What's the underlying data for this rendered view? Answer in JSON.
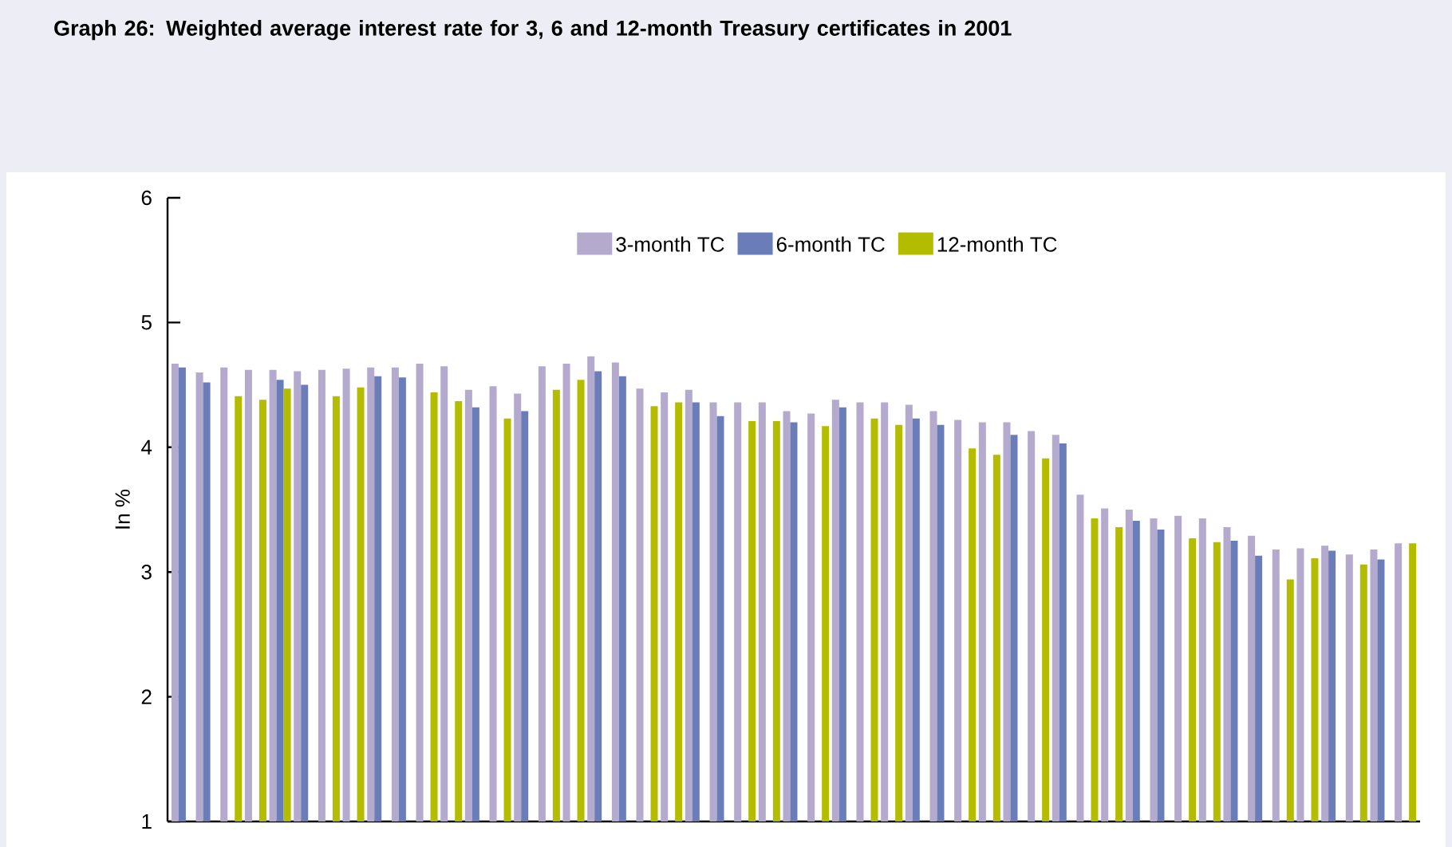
{
  "chart_data": {
    "type": "bar",
    "title": "Graph 26: Weighted average interest rate for 3, 6 and 12-month Treasury certificates in 2001",
    "ylabel": "In %",
    "categories": [
      null,
      null,
      null,
      null,
      null,
      null,
      null,
      null,
      null,
      null,
      null,
      null,
      null,
      null,
      null,
      null,
      null,
      null,
      null,
      null,
      null,
      null,
      null,
      null,
      null,
      null,
      null,
      null,
      null,
      null,
      null,
      null,
      null,
      null,
      null,
      null,
      null,
      null,
      null,
      null,
      null,
      null,
      null,
      null,
      null,
      null,
      null,
      null,
      null,
      null,
      null
    ],
    "series": [
      {
        "name": "3-month TC",
        "color": "#b3aacd",
        "values": [
          4.67,
          4.6,
          4.64,
          4.62,
          4.62,
          4.61,
          4.62,
          4.63,
          4.64,
          4.64,
          4.67,
          4.65,
          4.46,
          4.49,
          4.43,
          4.65,
          4.67,
          4.73,
          4.68,
          4.47,
          4.44,
          4.46,
          4.36,
          4.36,
          4.36,
          4.29,
          4.27,
          4.38,
          4.36,
          4.36,
          4.34,
          4.29,
          4.22,
          4.2,
          4.2,
          4.13,
          4.1,
          3.62,
          3.51,
          3.5,
          3.43,
          3.45,
          3.43,
          3.36,
          3.29,
          3.18,
          3.19,
          3.21,
          3.14,
          3.18,
          3.23
        ]
      },
      {
        "name": "6-month TC",
        "color": "#6a7db8",
        "values": [
          4.64,
          4.52,
          null,
          null,
          4.54,
          4.5,
          null,
          null,
          4.57,
          4.56,
          null,
          null,
          4.32,
          null,
          4.29,
          null,
          null,
          4.61,
          4.57,
          null,
          null,
          4.36,
          4.25,
          null,
          null,
          4.2,
          null,
          4.32,
          null,
          null,
          4.23,
          4.18,
          null,
          null,
          4.1,
          null,
          4.03,
          null,
          null,
          3.41,
          3.34,
          null,
          null,
          3.25,
          3.13,
          null,
          null,
          3.17,
          null,
          3.1,
          null
        ]
      },
      {
        "name": "12-month TC",
        "color": "#b4bc00",
        "values": [
          null,
          null,
          4.41,
          4.38,
          4.47,
          null,
          4.41,
          4.48,
          null,
          null,
          4.44,
          4.37,
          null,
          4.23,
          null,
          4.46,
          4.54,
          null,
          null,
          4.33,
          4.36,
          null,
          null,
          4.21,
          4.21,
          null,
          4.17,
          null,
          4.23,
          4.18,
          null,
          null,
          3.99,
          3.94,
          null,
          3.91,
          null,
          3.43,
          3.36,
          null,
          null,
          3.27,
          3.24,
          null,
          null,
          2.94,
          3.11,
          null,
          3.06,
          null,
          3.23
        ]
      }
    ],
    "ylim": [
      1,
      6
    ],
    "yticks": [
      1,
      2,
      3,
      4,
      5,
      6
    ],
    "legend": "top"
  }
}
